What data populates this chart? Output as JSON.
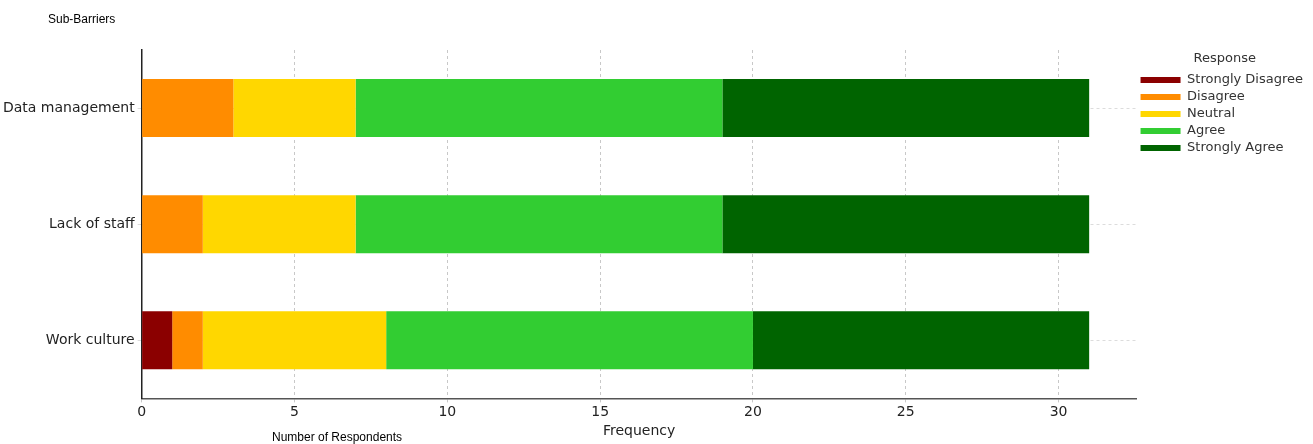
{
  "chart_data": {
    "type": "bar",
    "orientation": "horizontal",
    "stacked": true,
    "categories": [
      "Data management",
      "Lack of staff",
      "Work culture"
    ],
    "series": [
      {
        "name": "Strongly Disagree",
        "color": "#8b0000",
        "values": [
          0,
          0,
          1
        ]
      },
      {
        "name": "Disagree",
        "color": "#ff8c00",
        "values": [
          3,
          2,
          1
        ]
      },
      {
        "name": "Neutral",
        "color": "#ffd700",
        "values": [
          4,
          5,
          6
        ]
      },
      {
        "name": "Agree",
        "color": "#32cd32",
        "values": [
          12,
          12,
          12
        ]
      },
      {
        "name": "Strongly Agree",
        "color": "#006400",
        "values": [
          12,
          12,
          11
        ]
      }
    ],
    "xlabel": "Frequency",
    "legend_title": "Response",
    "legend": "top right",
    "xlim": [
      0,
      32.55
    ],
    "xticks": [
      0,
      5,
      10,
      15,
      20,
      25,
      30
    ],
    "grid": true,
    "annotations": [
      "Sub-Barriers",
      "Number of Respondents"
    ]
  }
}
